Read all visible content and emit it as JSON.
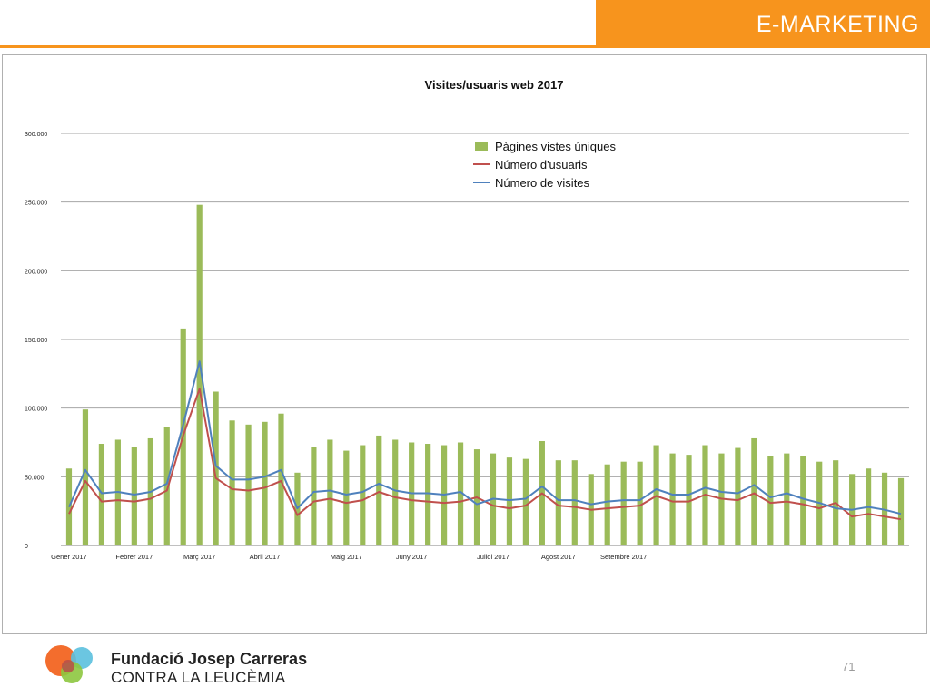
{
  "header": {
    "title": "E-MARKETING"
  },
  "footer": {
    "org_name": "Fundació Josep Carreras",
    "org_subtitle": "CONTRA LA LEUCÈMIA",
    "page_number": "71"
  },
  "colors": {
    "accent": "#f7941d",
    "bars": "#9bbb59",
    "usuaris": "#c0504d",
    "visites": "#4f81bd"
  },
  "chart_data": {
    "type": "bar",
    "title": "Visites/usuaris web 2017",
    "xlabel": "",
    "ylabel": "",
    "ylim": [
      0,
      300000
    ],
    "yticks": [
      0,
      50000,
      100000,
      150000,
      200000,
      250000,
      300000
    ],
    "ytick_labels": [
      "0",
      "50.000",
      "100.000",
      "150.000",
      "200.000",
      "250.000",
      "300.000"
    ],
    "grid": true,
    "legend_position": "top-right",
    "category_labels": [
      {
        "index": 0,
        "label": "Gener 2017"
      },
      {
        "index": 4,
        "label": "Febrer  2017"
      },
      {
        "index": 8,
        "label": "Març  2017"
      },
      {
        "index": 12,
        "label": "Abril  2017"
      },
      {
        "index": 17,
        "label": "Maig  2017"
      },
      {
        "index": 21,
        "label": "Juny  2017"
      },
      {
        "index": 26,
        "label": "Juliol 2017"
      },
      {
        "index": 30,
        "label": "Agost 2017"
      },
      {
        "index": 34,
        "label": "Setembre 2017"
      }
    ],
    "series": [
      {
        "name": "Pàgines vistes úniques",
        "kind": "bar",
        "values": [
          56000,
          99000,
          74000,
          77000,
          72000,
          78000,
          86000,
          158000,
          248000,
          112000,
          91000,
          88000,
          90000,
          96000,
          53000,
          72000,
          77000,
          69000,
          73000,
          80000,
          77000,
          75000,
          74000,
          73000,
          75000,
          70000,
          67000,
          64000,
          63000,
          76000,
          62000,
          62000,
          52000,
          59000,
          61000,
          61000,
          73000,
          67000,
          66000,
          73000,
          67000,
          71000,
          78000,
          65000,
          67000,
          65000,
          61000,
          62000,
          52000,
          56000,
          53000,
          49000
        ]
      },
      {
        "name": "Número d'usuaris",
        "kind": "line",
        "values": [
          23000,
          47000,
          32000,
          33000,
          32000,
          34000,
          40000,
          80000,
          114000,
          49000,
          41000,
          40000,
          42000,
          47000,
          22000,
          32000,
          34000,
          31000,
          33000,
          39000,
          35000,
          33000,
          32000,
          31000,
          32000,
          35000,
          29000,
          27000,
          29000,
          38000,
          29000,
          28000,
          26000,
          27000,
          28000,
          29000,
          36000,
          32000,
          32000,
          37000,
          34000,
          33000,
          38000,
          31000,
          32000,
          30000,
          27000,
          31000,
          21000,
          23000,
          21000,
          19000
        ]
      },
      {
        "name": "Número de visites",
        "kind": "line",
        "values": [
          28000,
          55000,
          38000,
          39000,
          37000,
          39000,
          45000,
          88000,
          134000,
          58000,
          48000,
          48000,
          50000,
          55000,
          27000,
          39000,
          40000,
          37000,
          39000,
          45000,
          40000,
          38000,
          38000,
          37000,
          39000,
          30000,
          34000,
          33000,
          34000,
          43000,
          33000,
          33000,
          30000,
          32000,
          33000,
          33000,
          41000,
          37000,
          37000,
          42000,
          39000,
          38000,
          44000,
          35000,
          38000,
          34000,
          31000,
          27000,
          26000,
          28000,
          26000,
          23000
        ]
      }
    ]
  }
}
